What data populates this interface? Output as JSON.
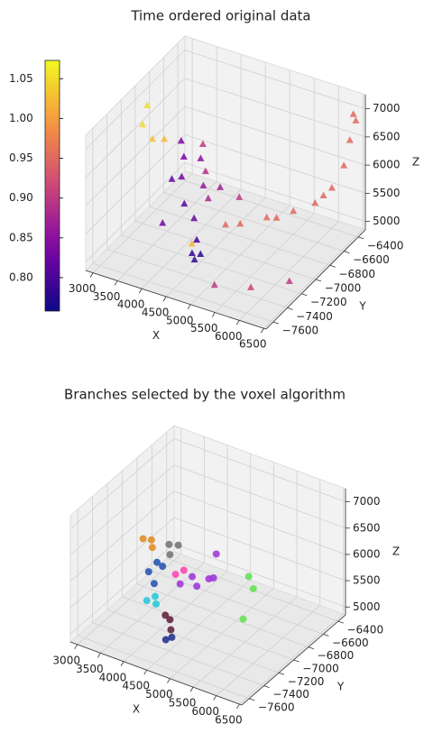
{
  "chart_data": [
    {
      "type": "scatter3d",
      "title": "Time ordered original data",
      "xlabel": "X",
      "ylabel": "Y",
      "zlabel": "Z",
      "marker": "triangle",
      "xlim": [
        2850,
        6550
      ],
      "ylim": [
        -7700,
        -6300
      ],
      "zlim": [
        4850,
        7250
      ],
      "xticks": [
        3000,
        3500,
        4000,
        4500,
        5000,
        5500,
        6000,
        6500
      ],
      "yticks": [
        {
          "value": -7600,
          "label": "−7600"
        },
        {
          "value": -7400,
          "label": "−7400"
        },
        {
          "value": -7200,
          "label": "−7200"
        },
        {
          "value": -7000,
          "label": "−7000"
        },
        {
          "value": -6800,
          "label": "−6800"
        },
        {
          "value": -6600,
          "label": "−6600"
        },
        {
          "value": -6400,
          "label": "−6400"
        }
      ],
      "zticks": [
        5000,
        5500,
        6000,
        6500,
        7000
      ],
      "colormap": "plasma",
      "clim": [
        0.758,
        1.073
      ],
      "cticks": [
        {
          "value": 0.8,
          "label": "0.80"
        },
        {
          "value": 0.85,
          "label": "0.85"
        },
        {
          "value": 0.9,
          "label": "0.90"
        },
        {
          "value": 0.95,
          "label": "0.95"
        },
        {
          "value": 1.0,
          "label": "1.00"
        },
        {
          "value": 1.05,
          "label": "1.05"
        }
      ],
      "series": [
        {
          "x": [
            4500,
            4550,
            4450,
            4400,
            3600,
            3800,
            3700,
            4000,
            3900,
            4200,
            3500,
            4100,
            4300,
            3700,
            4200,
            3800,
            4400,
            4000,
            3000,
            3200,
            3300,
            2950,
            4300,
            4700,
            5000,
            5400,
            5800,
            6100,
            6300,
            6400,
            6450,
            6500,
            6450,
            5600,
            6200,
            5800,
            6300,
            5200
          ],
          "y": [
            -7300,
            -7250,
            -7300,
            -7200,
            -7000,
            -7000,
            -6900,
            -7100,
            -6800,
            -7100,
            -6800,
            -6900,
            -6800,
            -7200,
            -6900,
            -6700,
            -6600,
            -6800,
            -7000,
            -7000,
            -6900,
            -6900,
            -7200,
            -7000,
            -7000,
            -6900,
            -6800,
            -6700,
            -6600,
            -6500,
            -6450,
            -6400,
            -6400,
            -6900,
            -6650,
            -7400,
            -7200,
            -7500
          ],
          "z": [
            5000,
            5050,
            5100,
            5200,
            5800,
            5900,
            6100,
            5600,
            6000,
            5400,
            6200,
            5700,
            5600,
            5300,
            5500,
            6100,
            5200,
            5800,
            6600,
            6400,
            6300,
            6800,
            5100,
            5300,
            5400,
            5500,
            5600,
            5700,
            5900,
            6200,
            6600,
            6900,
            7000,
            5550,
            5800,
            5000,
            5000,
            5000
          ],
          "c": [
            0.78,
            0.78,
            0.79,
            0.8,
            0.82,
            0.83,
            0.84,
            0.81,
            0.85,
            0.82,
            0.84,
            0.86,
            0.87,
            0.83,
            0.88,
            0.9,
            0.9,
            0.89,
            1.05,
            1.03,
            1.02,
            1.05,
            1.02,
            0.95,
            0.95,
            0.95,
            0.95,
            0.95,
            0.95,
            0.95,
            0.95,
            0.95,
            0.95,
            0.95,
            0.95,
            0.91,
            0.9,
            0.9
          ]
        }
      ]
    },
    {
      "type": "scatter3d",
      "title": "Branches selected by the voxel algorithm",
      "xlabel": "X",
      "ylabel": "Y",
      "zlabel": "Z",
      "marker": "circle",
      "xlim": [
        2850,
        6550
      ],
      "ylim": [
        -7700,
        -6300
      ],
      "zlim": [
        4850,
        7250
      ],
      "xticks": [
        3000,
        3500,
        4000,
        4500,
        5000,
        5500,
        6000,
        6500
      ],
      "yticks": [
        {
          "value": -7600,
          "label": "−7600"
        },
        {
          "value": -7400,
          "label": "−7400"
        },
        {
          "value": -7200,
          "label": "−7200"
        },
        {
          "value": -7000,
          "label": "−7000"
        },
        {
          "value": -6800,
          "label": "−6800"
        },
        {
          "value": -6600,
          "label": "−6600"
        },
        {
          "value": -6400,
          "label": "−6400"
        }
      ],
      "zticks": [
        5000,
        5500,
        6000,
        6500,
        7000
      ],
      "series": [
        {
          "color": "#e08a1e",
          "x": [
            3300,
            3400,
            3500
          ],
          "y": [
            -7000,
            -6950,
            -7000
          ],
          "z": [
            6100,
            6050,
            6000
          ]
        },
        {
          "color": "#707070",
          "x": [
            3700,
            3800,
            3900
          ],
          "y": [
            -6900,
            -6950,
            -6900
          ],
          "z": [
            6000,
            5900,
            6050
          ]
        },
        {
          "color": "#1f4fb0",
          "x": [
            3500,
            3600,
            3700,
            3800
          ],
          "y": [
            -7050,
            -7000,
            -7100,
            -7050
          ],
          "z": [
            5600,
            5750,
            5500,
            5800
          ]
        },
        {
          "color": "#20c8d8",
          "x": [
            3700,
            3800,
            3900
          ],
          "y": [
            -7200,
            -7150,
            -7200
          ],
          "z": [
            5300,
            5350,
            5300
          ]
        },
        {
          "color": "#ff40b0",
          "x": [
            4000,
            4100
          ],
          "y": [
            -7000,
            -6950
          ],
          "z": [
            5650,
            5700
          ]
        },
        {
          "color": "#9b30d8",
          "x": [
            4100,
            4200,
            4300,
            4400,
            4500,
            4400
          ],
          "y": [
            -7000,
            -6900,
            -6900,
            -6800,
            -6800,
            -6700
          ],
          "z": [
            5500,
            5550,
            5400,
            5450,
            5500,
            5800
          ]
        },
        {
          "color": "#5a1a3a",
          "x": [
            4100,
            4200,
            4300
          ],
          "y": [
            -7200,
            -7200,
            -7250
          ],
          "z": [
            5150,
            5100,
            5000
          ]
        },
        {
          "color": "#1a2a8a",
          "x": [
            4350,
            4400
          ],
          "y": [
            -7350,
            -7300
          ],
          "z": [
            4950,
            4950
          ]
        },
        {
          "color": "#60e050",
          "x": [
            5100,
            5200,
            5300
          ],
          "y": [
            -6700,
            -6700,
            -6900
          ],
          "z": [
            5600,
            5400,
            5100
          ]
        }
      ]
    }
  ]
}
